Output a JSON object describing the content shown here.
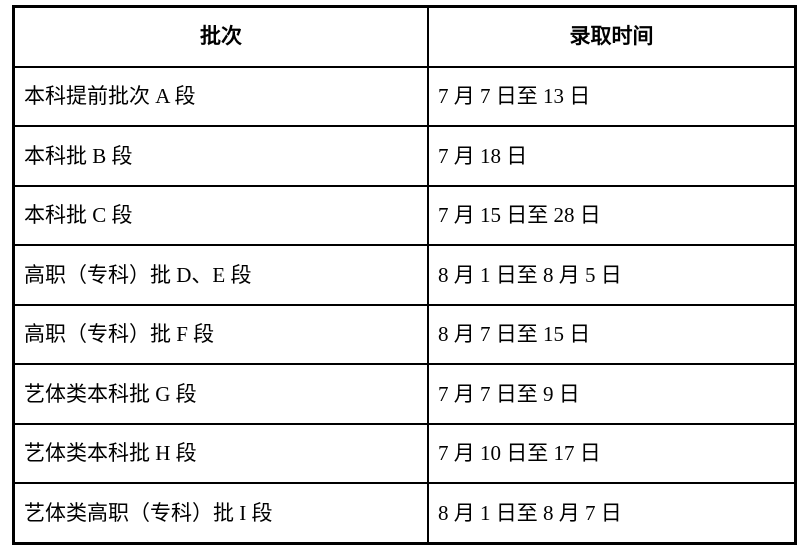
{
  "page": {
    "background_color": "#ffffff",
    "border_color": "#000000",
    "text_color": "#000000"
  },
  "table": {
    "columns": [
      {
        "key": "batch",
        "label": "批次"
      },
      {
        "key": "time",
        "label": "录取时间"
      }
    ],
    "rows": [
      {
        "batch": "本科提前批次 A 段",
        "time": "7 月 7 日至 13 日"
      },
      {
        "batch": "本科批 B 段",
        "time": "7 月 18 日"
      },
      {
        "batch": "本科批 C 段",
        "time": "7 月 15 日至 28 日"
      },
      {
        "batch": "高职（专科）批 D、E 段",
        "time": "8 月 1 日至 8 月 5 日"
      },
      {
        "batch": "高职（专科）批 F 段",
        "time": "8 月 7 日至 15 日"
      },
      {
        "batch": "艺体类本科批 G 段",
        "time": "7 月 7 日至 9 日"
      },
      {
        "batch": "艺体类本科批 H 段",
        "time": "7 月 10 日至 17 日"
      },
      {
        "batch": "艺体类高职（专科）批 I 段",
        "time": "8 月 1 日至 8 月 7 日"
      }
    ]
  }
}
